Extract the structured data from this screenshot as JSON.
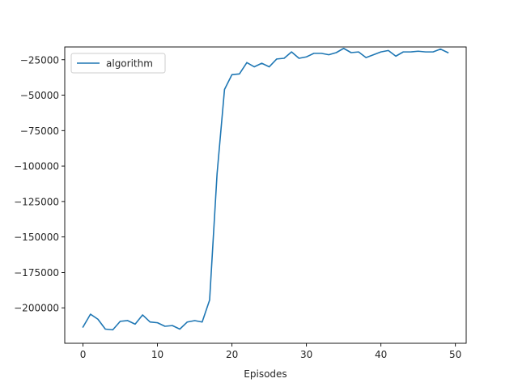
{
  "chart_data": {
    "type": "line",
    "title": "",
    "xlabel": "Episodes",
    "ylabel": "",
    "xlim": [
      -2.45,
      51.45
    ],
    "ylim": [
      -225000,
      -16000
    ],
    "grid": false,
    "legend": {
      "placement": "top-left"
    },
    "x_ticks": [
      {
        "value": 0,
        "label": "0"
      },
      {
        "value": 10,
        "label": "10"
      },
      {
        "value": 20,
        "label": "20"
      },
      {
        "value": 30,
        "label": "30"
      },
      {
        "value": 40,
        "label": "40"
      },
      {
        "value": 50,
        "label": "50"
      }
    ],
    "y_ticks": [
      {
        "value": -25000,
        "label": "−25000"
      },
      {
        "value": -50000,
        "label": "−50000"
      },
      {
        "value": -75000,
        "label": "−75000"
      },
      {
        "value": -100000,
        "label": "−100000"
      },
      {
        "value": -125000,
        "label": "−125000"
      },
      {
        "value": -150000,
        "label": "−150000"
      },
      {
        "value": -175000,
        "label": "−175000"
      },
      {
        "value": -200000,
        "label": "−200000"
      }
    ],
    "series": [
      {
        "name": "algorithm",
        "color": "#1f77b4",
        "x": [
          0,
          1,
          2,
          3,
          4,
          5,
          6,
          7,
          8,
          9,
          10,
          11,
          12,
          13,
          14,
          15,
          16,
          17,
          18,
          19,
          20,
          21,
          22,
          23,
          24,
          25,
          26,
          27,
          28,
          29,
          30,
          31,
          32,
          33,
          34,
          35,
          36,
          37,
          38,
          39,
          40,
          41,
          42,
          43,
          44,
          45,
          46,
          47,
          48,
          49
        ],
        "values": [
          -213500,
          -204500,
          -208000,
          -215000,
          -215500,
          -209500,
          -209000,
          -211500,
          -205000,
          -210000,
          -210500,
          -213000,
          -212500,
          -215000,
          -210000,
          -209000,
          -210000,
          -194500,
          -105500,
          -46000,
          -35500,
          -35000,
          -27000,
          -30000,
          -27500,
          -30000,
          -24500,
          -24000,
          -19500,
          -24000,
          -23000,
          -20500,
          -20500,
          -21500,
          -20000,
          -17000,
          -20000,
          -19500,
          -23500,
          -21500,
          -19500,
          -18500,
          -22500,
          -19500,
          -19500,
          -19000,
          -19500,
          -19500,
          -17500,
          -20000
        ]
      }
    ]
  }
}
